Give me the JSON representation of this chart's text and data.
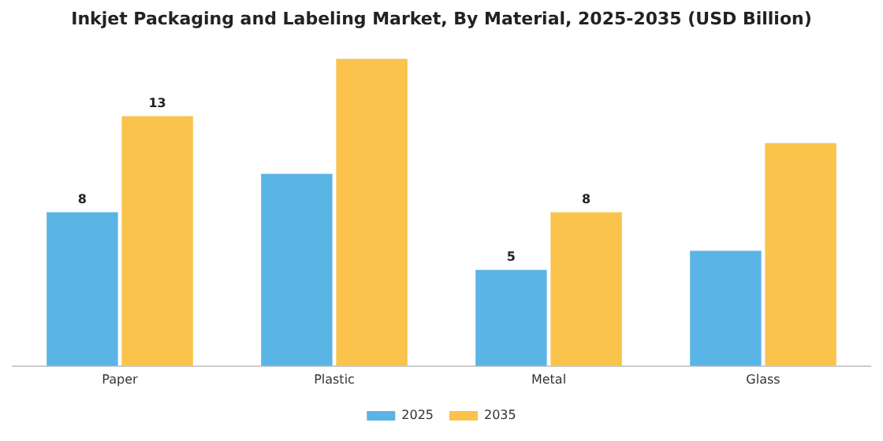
{
  "chart_data": {
    "type": "bar",
    "title": "Inkjet Packaging and Labeling Market, By Material, 2025-2035 (USD Billion)",
    "categories": [
      "Paper",
      "Plastic",
      "Metal",
      "Glass"
    ],
    "series": [
      {
        "name": "2025",
        "color": "#5ab4e5",
        "values": [
          8,
          10,
          5,
          6
        ],
        "value_labels": [
          "8",
          null,
          "5",
          null
        ]
      },
      {
        "name": "2035",
        "color": "#f9c34c",
        "values": [
          13,
          16,
          8,
          11.6
        ],
        "value_labels": [
          "13",
          null,
          "8",
          null
        ]
      }
    ],
    "legend": "bottom",
    "grid": false
  }
}
